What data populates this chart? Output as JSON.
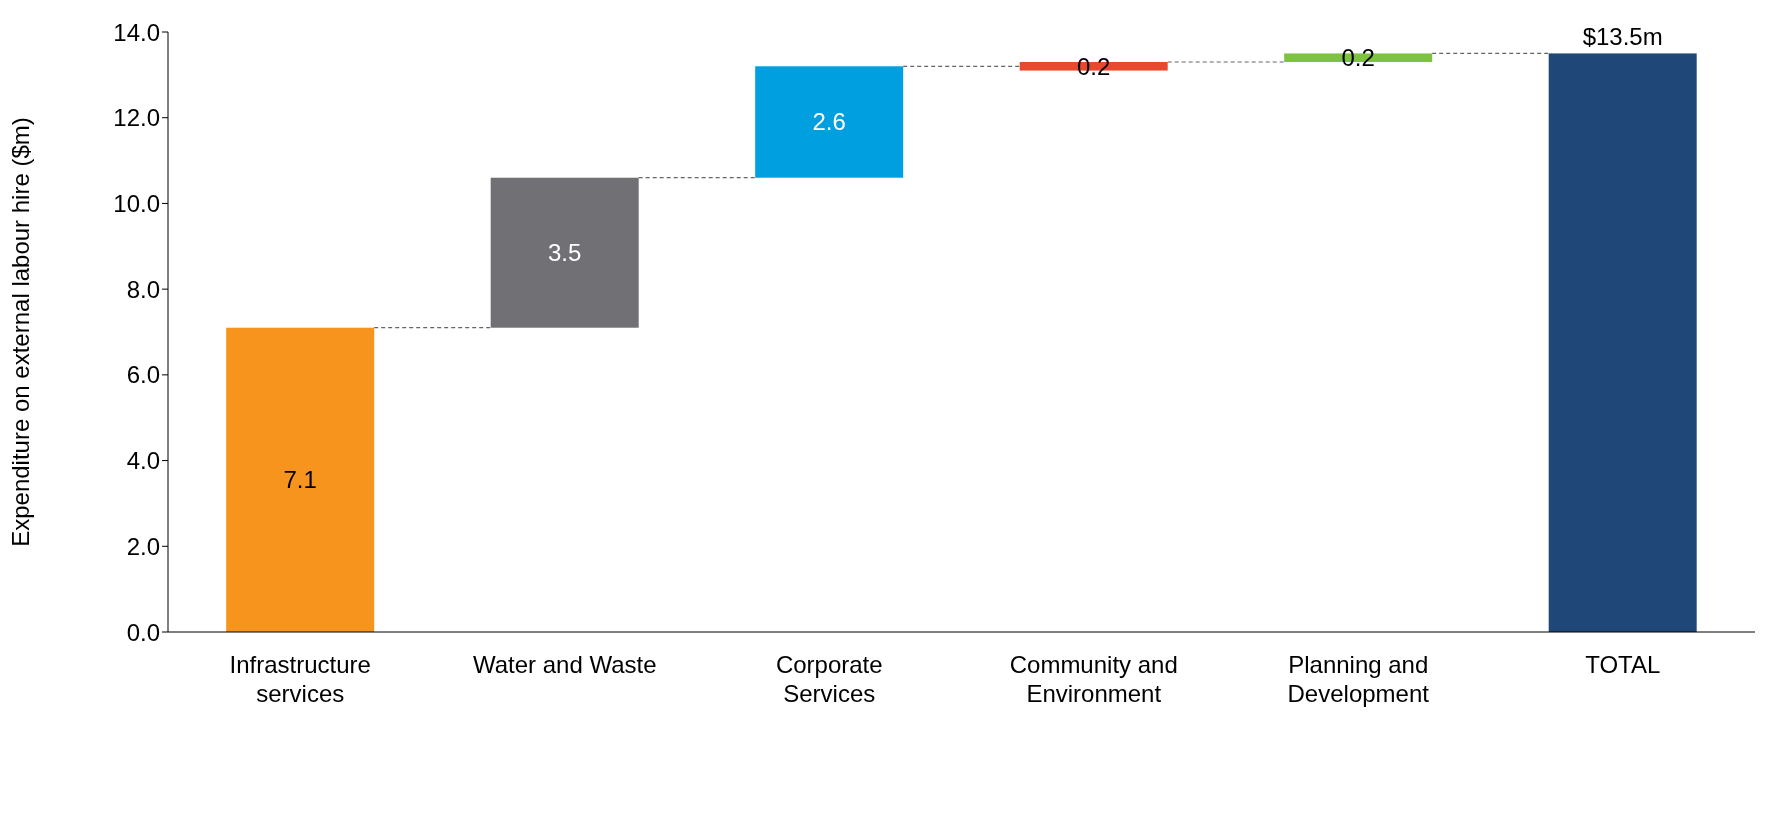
{
  "chart_data": {
    "type": "bar",
    "ylabel": "Expenditure on external labour hire ($m)",
    "categories": [
      "Infrastructure services",
      "Water and Waste",
      "Corporate Services",
      "Community and Environment",
      "Planning and Development",
      "TOTAL"
    ],
    "values": [
      7.1,
      3.5,
      2.6,
      0.2,
      0.2,
      13.5
    ],
    "base": [
      0,
      7.1,
      10.6,
      13.1,
      13.3,
      0
    ],
    "colors": [
      "#f7941d",
      "#717074",
      "#009fdf",
      "#e8482e",
      "#7dc242",
      "#1f4878"
    ],
    "value_labels": [
      "7.1",
      "3.5",
      "2.6",
      "0.2",
      "0.2",
      "$13.5m"
    ],
    "ylim": [
      0,
      14
    ],
    "yticks": [
      {
        "value": 0,
        "label": "0.0"
      },
      {
        "value": 2,
        "label": "2.0"
      },
      {
        "value": 4,
        "label": "4.0"
      },
      {
        "value": 6,
        "label": "6.0"
      },
      {
        "value": 8,
        "label": "8.0"
      },
      {
        "value": 10,
        "label": "10.0"
      },
      {
        "value": 12,
        "label": "12.0"
      },
      {
        "value": 14,
        "label": "14.0"
      }
    ],
    "grid": false
  }
}
